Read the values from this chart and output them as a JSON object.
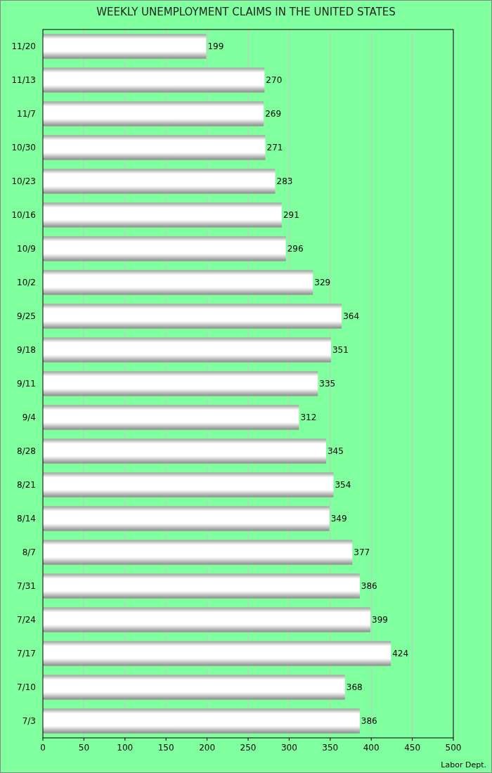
{
  "chart_data": {
    "type": "bar",
    "orientation": "horizontal",
    "title": "WEEKLY UNEMPLOYMENT CLAIMS IN THE UNITED STATES",
    "categories": [
      "11/20",
      "11/13",
      "11/7",
      "10/30",
      "10/23",
      "10/16",
      "10/9",
      "10/2",
      "9/25",
      "9/18",
      "9/11",
      "9/4",
      "8/28",
      "8/21",
      "8/14",
      "8/7",
      "7/31",
      "7/24",
      "7/17",
      "7/10",
      "7/3"
    ],
    "values": [
      199,
      270,
      269,
      271,
      283,
      291,
      296,
      329,
      364,
      351,
      335,
      312,
      345,
      354,
      349,
      377,
      386,
      399,
      424,
      368,
      386
    ],
    "color": "#ffffff",
    "xlim": [
      0,
      500
    ],
    "xticks": [
      0,
      50,
      100,
      150,
      200,
      250,
      300,
      350,
      400,
      450,
      500
    ],
    "grid": "x",
    "data_labels": true,
    "annotations": [
      "Labor Dept."
    ]
  }
}
